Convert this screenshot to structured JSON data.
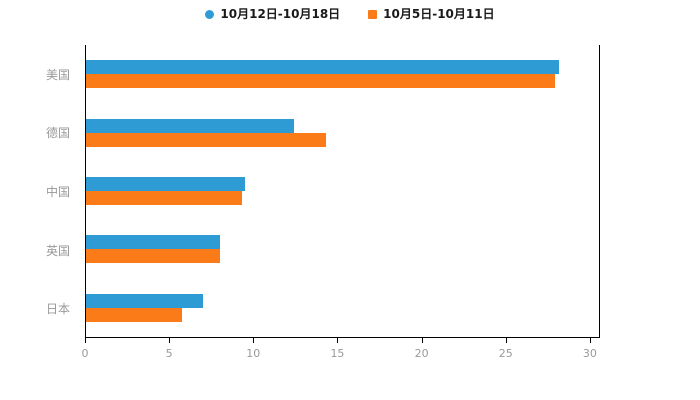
{
  "chart_data": {
    "type": "bar",
    "orientation": "horizontal",
    "title": "",
    "xlabel": "",
    "ylabel": "",
    "categories": [
      "美国",
      "德国",
      "中国",
      "英国",
      "日本"
    ],
    "series": [
      {
        "name": "10月12日-10月18日",
        "color": "#2E9BD4",
        "marker": "circle",
        "values": [
          28.2,
          12.4,
          9.5,
          8.0,
          7.0
        ]
      },
      {
        "name": "10月5日-10月11日",
        "color": "#FA7B17",
        "marker": "square",
        "values": [
          28.0,
          14.3,
          9.3,
          8.0,
          5.7
        ]
      }
    ],
    "xlim": [
      0,
      30.6
    ],
    "xticks": [
      0,
      5,
      10,
      15,
      20,
      25,
      30
    ],
    "legend_position": "top",
    "grid": false,
    "axis_line_color": "#000000",
    "tick_label_color": "#999999"
  }
}
